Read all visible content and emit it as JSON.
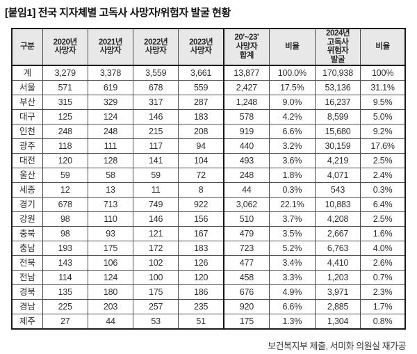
{
  "page": {
    "title": "[붙임1] 전국 지자체별 고독사 사망자/위험자 발굴 현황",
    "footer": "보건복지부 제출, 서미화 의원실 재가공"
  },
  "colors": {
    "header_bg": "#e8e8e8",
    "border_dark": "#1c1c1c",
    "border_inner": "#4d4d4d",
    "text": "#2e2e2e"
  },
  "table": {
    "headers": [
      "구분",
      "2020년\n사망자",
      "2021년\n사망자",
      "2022년\n사망자",
      "2023년\n사망자",
      "20'~23'\n사망자\n합계",
      "비율",
      "2024년\n고독사\n위험자\n발굴",
      "비율"
    ],
    "rows": [
      [
        "계",
        "3,279",
        "3,378",
        "3,559",
        "3,661",
        "13,877",
        "100.0%",
        "170,938",
        "100%"
      ],
      [
        "서울",
        "571",
        "619",
        "678",
        "559",
        "2,427",
        "17.5%",
        "53,136",
        "31.1%"
      ],
      [
        "부산",
        "315",
        "329",
        "317",
        "287",
        "1,248",
        "9.0%",
        "16,237",
        "9.5%"
      ],
      [
        "대구",
        "125",
        "124",
        "146",
        "183",
        "578",
        "4.2%",
        "8,599",
        "5.0%"
      ],
      [
        "인천",
        "248",
        "248",
        "215",
        "208",
        "919",
        "6.6%",
        "15,680",
        "9.2%"
      ],
      [
        "광주",
        "118",
        "111",
        "117",
        "94",
        "440",
        "3.2%",
        "30,159",
        "17.6%"
      ],
      [
        "대전",
        "120",
        "128",
        "141",
        "104",
        "493",
        "3.6%",
        "4,219",
        "2.5%"
      ],
      [
        "울산",
        "59",
        "58",
        "59",
        "72",
        "248",
        "1.8%",
        "4,071",
        "2.4%"
      ],
      [
        "세종",
        "12",
        "13",
        "11",
        "8",
        "44",
        "0.3%",
        "543",
        "0.3%"
      ],
      [
        "경기",
        "678",
        "713",
        "749",
        "922",
        "3,062",
        "22.1%",
        "10,883",
        "6.4%"
      ],
      [
        "강원",
        "98",
        "110",
        "146",
        "156",
        "510",
        "3.7%",
        "4,208",
        "2.5%"
      ],
      [
        "충북",
        "98",
        "93",
        "121",
        "167",
        "479",
        "3.5%",
        "2,667",
        "1.6%"
      ],
      [
        "충남",
        "193",
        "175",
        "172",
        "183",
        "723",
        "5.2%",
        "6,763",
        "4.0%"
      ],
      [
        "전북",
        "143",
        "106",
        "102",
        "126",
        "477",
        "3.4%",
        "4,410",
        "2.6%"
      ],
      [
        "전남",
        "114",
        "124",
        "100",
        "120",
        "458",
        "3.3%",
        "1,203",
        "0.7%"
      ],
      [
        "경북",
        "135",
        "180",
        "175",
        "186",
        "676",
        "4.9%",
        "3,971",
        "2.3%"
      ],
      [
        "경남",
        "225",
        "203",
        "257",
        "235",
        "920",
        "6.6%",
        "2,885",
        "1.7%"
      ],
      [
        "제주",
        "27",
        "44",
        "53",
        "51",
        "175",
        "1.3%",
        "1,304",
        "0.8%"
      ]
    ]
  }
}
